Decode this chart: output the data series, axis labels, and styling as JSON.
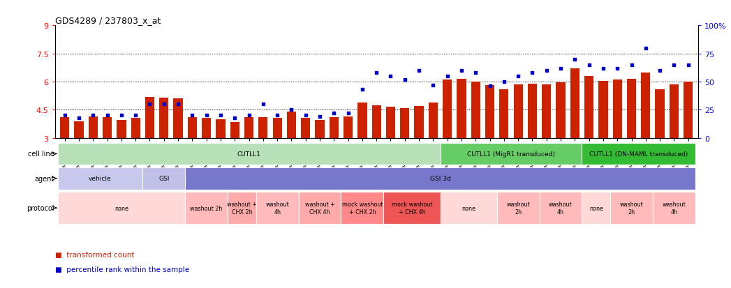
{
  "title": "GDS4289 / 237803_x_at",
  "gsm_labels": [
    "GSM731500",
    "GSM731501",
    "GSM731502",
    "GSM731503",
    "GSM731504",
    "GSM731505",
    "GSM731518",
    "GSM731519",
    "GSM731520",
    "GSM731506",
    "GSM731507",
    "GSM731508",
    "GSM731509",
    "GSM731510",
    "GSM731511",
    "GSM731512",
    "GSM731513",
    "GSM731514",
    "GSM731515",
    "GSM731516",
    "GSM731517",
    "GSM731521",
    "GSM731522",
    "GSM731523",
    "GSM731524",
    "GSM731525",
    "GSM731526",
    "GSM731527",
    "GSM731528",
    "GSM731529",
    "GSM731531",
    "GSM731532",
    "GSM731533",
    "GSM731534",
    "GSM731535",
    "GSM731536",
    "GSM731537",
    "GSM731538",
    "GSM731539",
    "GSM731540",
    "GSM731541",
    "GSM731542",
    "GSM731543",
    "GSM731544",
    "GSM731545"
  ],
  "bar_values": [
    4.1,
    3.9,
    4.15,
    4.1,
    3.95,
    4.05,
    5.2,
    5.15,
    5.1,
    4.1,
    4.05,
    4.0,
    3.85,
    4.1,
    4.1,
    4.05,
    4.4,
    4.05,
    3.95,
    4.1,
    4.15,
    4.9,
    4.75,
    4.65,
    4.6,
    4.7,
    4.9,
    6.1,
    6.15,
    6.0,
    5.8,
    5.6,
    5.85,
    5.9,
    5.85,
    5.95,
    6.7,
    6.3,
    6.05,
    6.1,
    6.15,
    6.5,
    5.6,
    5.85,
    6.0
  ],
  "percentile_values": [
    20,
    18,
    20,
    20,
    20,
    20,
    30,
    30,
    30,
    20,
    20,
    20,
    18,
    20,
    30,
    20,
    25,
    20,
    19,
    22,
    22,
    43,
    58,
    55,
    52,
    60,
    47,
    55,
    60,
    58,
    46,
    50,
    55,
    58,
    60,
    62,
    70,
    65,
    62,
    62,
    65,
    80,
    60,
    65,
    65
  ],
  "bar_color": "#cc2200",
  "dot_color": "#0000cc",
  "ylim_left": [
    3,
    9
  ],
  "ylim_right": [
    0,
    100
  ],
  "yticks_left": [
    3,
    4.5,
    6,
    7.5,
    9
  ],
  "yticks_left_labels": [
    "3",
    "4.5",
    "6",
    "7.5",
    "9"
  ],
  "yticks_right": [
    0,
    25,
    50,
    75,
    100
  ],
  "yticks_right_labels": [
    "0",
    "25",
    "50",
    "75",
    "100%"
  ],
  "hlines": [
    4.5,
    6.0,
    7.5
  ],
  "cell_line_groups": [
    {
      "label": "CUTLL1",
      "start": 0,
      "end": 26,
      "color": "#b8e0b8"
    },
    {
      "label": "CUTLL1 (MigR1 transduced)",
      "start": 27,
      "end": 36,
      "color": "#66cc66"
    },
    {
      "label": "CUTLL1 (DN-MAML transduced)",
      "start": 37,
      "end": 44,
      "color": "#33bb33"
    }
  ],
  "agent_groups": [
    {
      "label": "vehicle",
      "start": 0,
      "end": 5,
      "color": "#c8c8ee"
    },
    {
      "label": "GSI",
      "start": 6,
      "end": 8,
      "color": "#c0c0e8"
    },
    {
      "label": "GSI 3d",
      "start": 9,
      "end": 44,
      "color": "#7777cc"
    }
  ],
  "protocol_groups": [
    {
      "label": "none",
      "start": 0,
      "end": 8,
      "color": "#ffd8d8"
    },
    {
      "label": "washout 2h",
      "start": 9,
      "end": 11,
      "color": "#ffbbbb"
    },
    {
      "label": "washout +\nCHX 2h",
      "start": 12,
      "end": 13,
      "color": "#ffaaaa"
    },
    {
      "label": "washout\n4h",
      "start": 14,
      "end": 16,
      "color": "#ffbbbb"
    },
    {
      "label": "washout +\nCHX 4h",
      "start": 17,
      "end": 19,
      "color": "#ffaaaa"
    },
    {
      "label": "mock washout\n+ CHX 2h",
      "start": 20,
      "end": 22,
      "color": "#ff8888"
    },
    {
      "label": "mock washout\n+ CHX 4h",
      "start": 23,
      "end": 26,
      "color": "#ee5555"
    },
    {
      "label": "none",
      "start": 27,
      "end": 30,
      "color": "#ffd8d8"
    },
    {
      "label": "washout\n2h",
      "start": 31,
      "end": 33,
      "color": "#ffbbbb"
    },
    {
      "label": "washout\n4h",
      "start": 34,
      "end": 36,
      "color": "#ffbbbb"
    },
    {
      "label": "none",
      "start": 37,
      "end": 38,
      "color": "#ffd8d8"
    },
    {
      "label": "washout\n2h",
      "start": 39,
      "end": 41,
      "color": "#ffbbbb"
    },
    {
      "label": "washout\n4h",
      "start": 42,
      "end": 44,
      "color": "#ffbbbb"
    }
  ],
  "row_labels": [
    "cell line",
    "agent",
    "protocol"
  ],
  "legend_items": [
    {
      "color": "#cc2200",
      "label": "transformed count"
    },
    {
      "color": "#0000cc",
      "label": "percentile rank within the sample"
    }
  ]
}
